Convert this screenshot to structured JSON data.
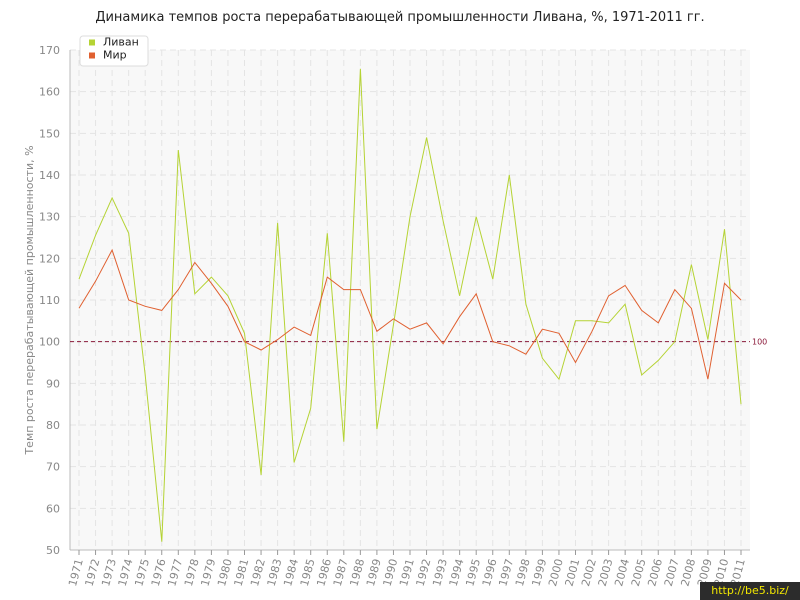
{
  "chart_data": {
    "type": "line",
    "title": "Динамика темпов роста перерабатывающей промышленности Ливана, %, 1971-2011 гг.",
    "xlabel": "",
    "ylabel": "Темп роста перерабатывающей промышленности, %",
    "ylim": [
      50,
      170
    ],
    "yticks": [
      50,
      60,
      70,
      80,
      90,
      100,
      110,
      120,
      130,
      140,
      150,
      160,
      170
    ],
    "grid": true,
    "legend_position": "top-left",
    "reference_line": {
      "value": 100,
      "label": "100",
      "color": "#8b1a3a"
    },
    "categories": [
      "1971",
      "1972",
      "1973",
      "1974",
      "1975",
      "1976",
      "1977",
      "1978",
      "1979",
      "1980",
      "1981",
      "1982",
      "1983",
      "1984",
      "1985",
      "1986",
      "1987",
      "1988",
      "1989",
      "1990",
      "1991",
      "1992",
      "1993",
      "1994",
      "1995",
      "1996",
      "1997",
      "1998",
      "1999",
      "2000",
      "2001",
      "2002",
      "2003",
      "2004",
      "2005",
      "2006",
      "2007",
      "2008",
      "2009",
      "2010",
      "2011"
    ],
    "series": [
      {
        "name": "Ливан",
        "color": "#b5d334",
        "values": [
          115,
          125.5,
          134.5,
          126,
          92,
          52,
          146,
          111.5,
          115.5,
          111,
          102,
          68,
          128.5,
          71,
          84,
          126,
          76,
          165.5,
          79,
          104,
          130,
          149,
          129,
          111,
          130,
          115,
          140,
          109,
          96,
          91,
          105,
          105,
          104.5,
          109,
          92,
          95.5,
          100,
          118.5,
          100.5,
          127,
          85
        ]
      },
      {
        "name": "Мир",
        "color": "#e06030",
        "values": [
          108,
          114.5,
          122,
          110,
          108.5,
          107.5,
          112.5,
          119,
          114,
          108.5,
          100,
          98,
          100.5,
          103.5,
          101.5,
          115.5,
          112.5,
          112.5,
          102.5,
          105.5,
          103,
          104.5,
          99.5,
          106,
          111.5,
          100,
          99,
          97,
          103,
          102,
          95,
          102.5,
          111,
          113.5,
          107.5,
          104.5,
          112.5,
          108,
          91,
          114,
          110
        ]
      }
    ]
  },
  "watermark": {
    "text": "http://be5.biz/"
  }
}
